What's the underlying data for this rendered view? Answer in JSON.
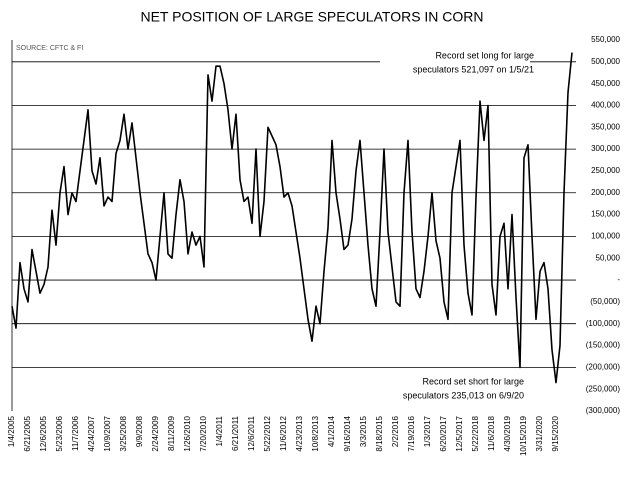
{
  "chart_data": {
    "type": "line",
    "title": "NET POSITION OF LARGE SPECULATORS IN CORN",
    "source": "SOURCE: CFTC & FI",
    "annotations": [
      {
        "lines": [
          "Record set long for large",
          "speculators 521,097 on 1/5/21"
        ]
      },
      {
        "lines": [
          "Record set short for large",
          "speculators 235,013 on 6/9/20"
        ]
      }
    ],
    "categories": [
      "1/4/2005",
      null,
      null,
      null,
      "6/21/2005",
      null,
      null,
      null,
      "12/6/2005",
      null,
      null,
      null,
      "5/23/2006",
      null,
      null,
      null,
      "11/7/2006",
      null,
      null,
      null,
      "4/24/2007",
      null,
      null,
      null,
      "10/9/2007",
      null,
      null,
      null,
      "3/25/2008",
      null,
      null,
      null,
      "9/9/2008",
      null,
      null,
      null,
      "2/24/2009",
      null,
      null,
      null,
      "8/11/2009",
      null,
      null,
      null,
      "1/26/2010",
      null,
      null,
      null,
      "7/20/2010",
      null,
      null,
      null,
      "1/4/2011",
      null,
      null,
      null,
      "6/21/2011",
      null,
      null,
      null,
      "12/6/2011",
      null,
      null,
      null,
      "5/22/2012",
      null,
      null,
      null,
      "11/6/2012",
      null,
      null,
      null,
      "4/23/2013",
      null,
      null,
      null,
      "10/8/2013",
      null,
      null,
      null,
      "4/1/2014",
      null,
      null,
      null,
      "9/16/2014",
      null,
      null,
      null,
      "3/3/2015",
      null,
      null,
      null,
      "8/18/2015",
      null,
      null,
      null,
      "2/2/2016",
      null,
      null,
      null,
      "7/19/2016",
      null,
      null,
      null,
      "1/3/2017",
      null,
      null,
      null,
      "6/20/2017",
      null,
      null,
      null,
      "12/5/2017",
      null,
      null,
      null,
      "5/22/2018",
      null,
      null,
      null,
      "11/6/2018",
      null,
      null,
      null,
      "4/30/2019",
      null,
      null,
      null,
      "10/15/2019",
      null,
      null,
      null,
      "3/31/2020",
      null,
      null,
      null,
      "9/15/2020",
      null,
      null,
      null,
      null
    ],
    "series": [
      {
        "name": "Net position",
        "color": "#000000",
        "values": [
          -60000,
          -110000,
          40000,
          -20000,
          -50000,
          70000,
          20000,
          -30000,
          -10000,
          30000,
          160000,
          80000,
          200000,
          260000,
          150000,
          200000,
          180000,
          250000,
          320000,
          390000,
          250000,
          220000,
          280000,
          170000,
          190000,
          180000,
          290000,
          320000,
          380000,
          300000,
          360000,
          280000,
          200000,
          130000,
          60000,
          40000,
          0,
          100000,
          200000,
          60000,
          50000,
          150000,
          230000,
          180000,
          60000,
          110000,
          80000,
          100000,
          30000,
          470000,
          410000,
          490000,
          490000,
          450000,
          390000,
          300000,
          380000,
          230000,
          180000,
          190000,
          130000,
          300000,
          100000,
          180000,
          350000,
          330000,
          310000,
          260000,
          190000,
          200000,
          170000,
          110000,
          50000,
          -20000,
          -90000,
          -140000,
          -60000,
          -100000,
          20000,
          120000,
          320000,
          200000,
          140000,
          70000,
          80000,
          140000,
          250000,
          320000,
          200000,
          80000,
          -20000,
          -60000,
          110000,
          300000,
          110000,
          30000,
          -50000,
          -60000,
          200000,
          320000,
          110000,
          -20000,
          -40000,
          20000,
          100000,
          200000,
          90000,
          50000,
          -50000,
          -90000,
          200000,
          260000,
          320000,
          80000,
          -30000,
          -80000,
          190000,
          410000,
          320000,
          400000,
          -10000,
          -80000,
          100000,
          130000,
          -20000,
          150000,
          -40000,
          -200000,
          280000,
          310000,
          100000,
          -90000,
          20000,
          40000,
          -20000,
          -160000,
          -235013,
          -150000,
          200000,
          430000,
          521097
        ]
      }
    ],
    "ylim": [
      -300000,
      550000
    ],
    "yticks": [
      {
        "value": -300000,
        "label": "(300,000)"
      },
      {
        "value": -250000,
        "label": "(250,000)"
      },
      {
        "value": -200000,
        "label": "(200,000)"
      },
      {
        "value": -150000,
        "label": "(150,000)"
      },
      {
        "value": -100000,
        "label": "(100,000)"
      },
      {
        "value": -50000,
        "label": "(50,000)"
      },
      {
        "value": 0,
        "label": "-"
      },
      {
        "value": 50000,
        "label": "50,000"
      },
      {
        "value": 100000,
        "label": "100,000"
      },
      {
        "value": 150000,
        "label": "150,000"
      },
      {
        "value": 200000,
        "label": "200,000"
      },
      {
        "value": 250000,
        "label": "250,000"
      },
      {
        "value": 300000,
        "label": "300,000"
      },
      {
        "value": 350000,
        "label": "350,000"
      },
      {
        "value": 400000,
        "label": "400,000"
      },
      {
        "value": 450000,
        "label": "450,000"
      },
      {
        "value": 500000,
        "label": "500,000"
      },
      {
        "value": 550000,
        "label": "550,000"
      }
    ],
    "grid": true
  }
}
